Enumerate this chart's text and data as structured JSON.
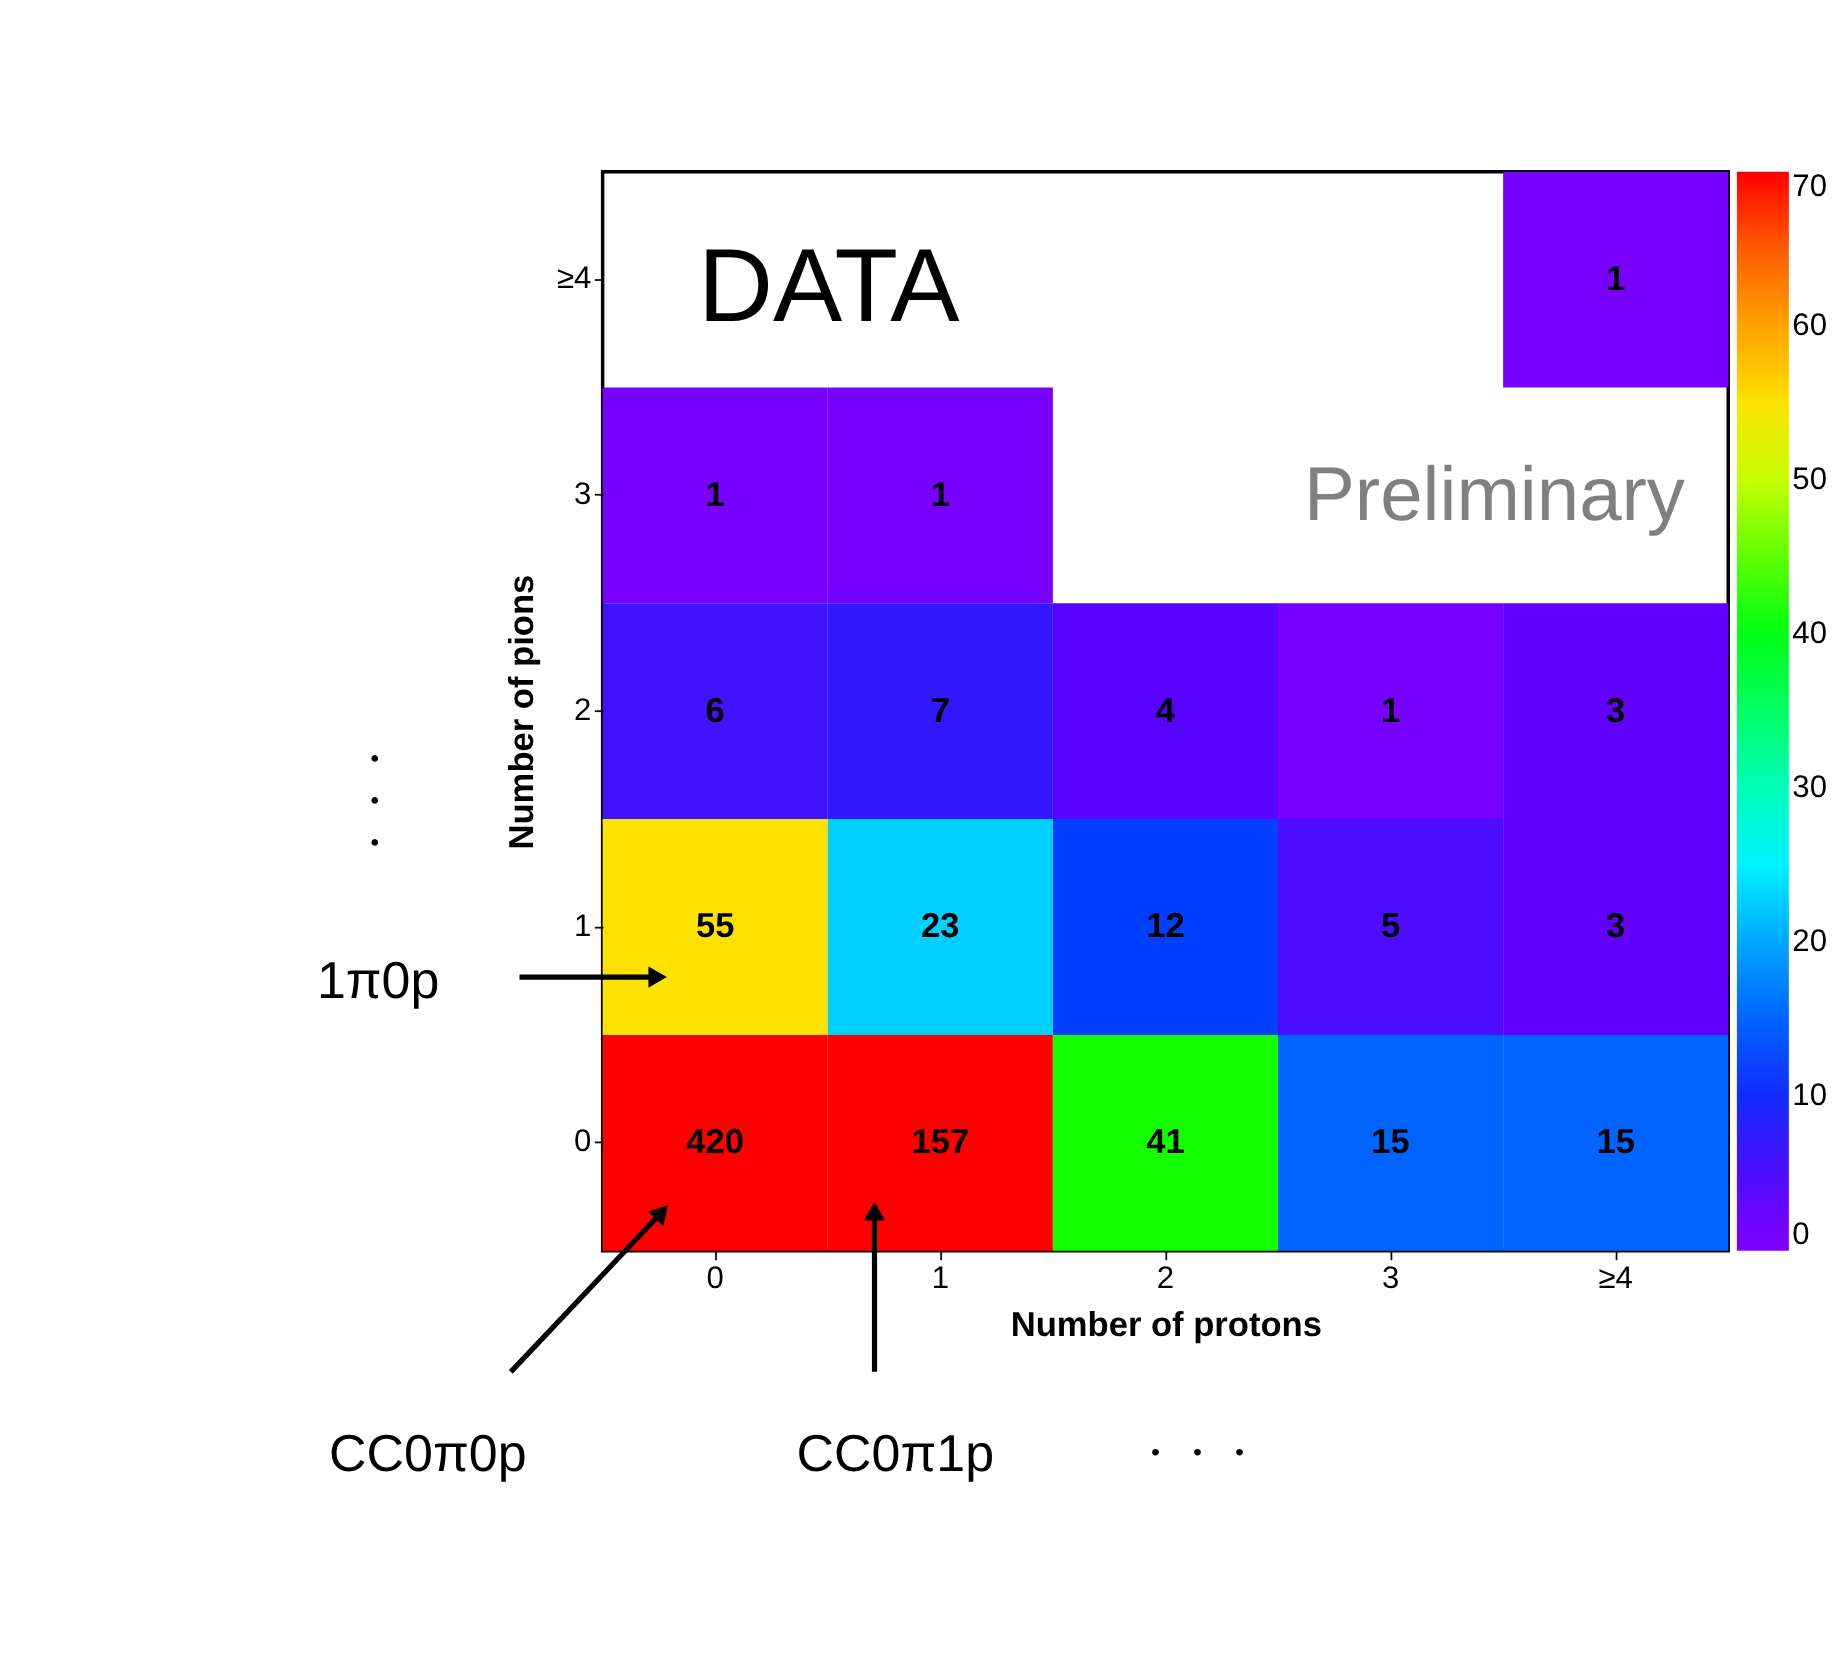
{
  "chart_data": {
    "type": "heatmap",
    "xlabel": "Number of protons",
    "ylabel": "Number of pions",
    "categories": [
      "0",
      "1",
      "2",
      "3",
      "≥4"
    ],
    "y_categories": [
      "≥4",
      "3",
      "2",
      "1",
      "0"
    ],
    "cells": [
      [
        null,
        null,
        null,
        null,
        1
      ],
      [
        1,
        1,
        null,
        null,
        null
      ],
      [
        6,
        7,
        4,
        1,
        3
      ],
      [
        55,
        23,
        12,
        5,
        3
      ],
      [
        420,
        157,
        41,
        15,
        15
      ]
    ],
    "clim": [
      0,
      70
    ],
    "cticks": [
      0,
      10,
      20,
      30,
      40,
      50,
      60,
      70
    ],
    "data_labels": true,
    "grid": false,
    "annotations": [
      "DATA",
      "Preliminary",
      "1π0p",
      "CC0π0p",
      "CC0π1p",
      "・・・",
      "・・・"
    ]
  }
}
